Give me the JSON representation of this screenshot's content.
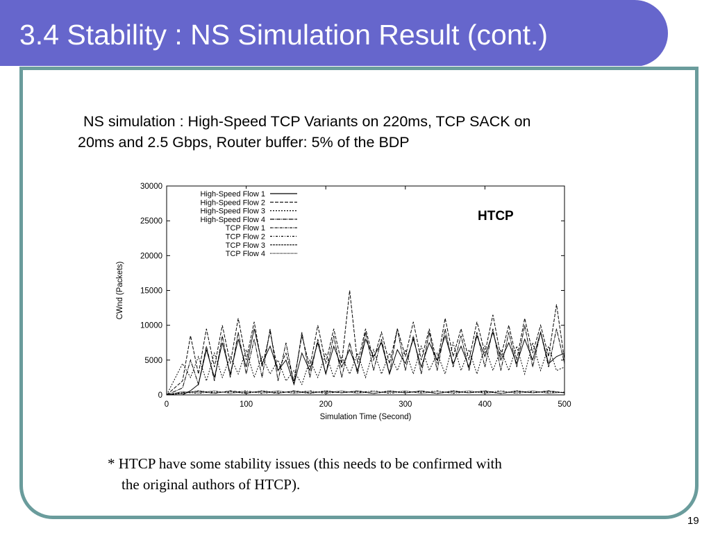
{
  "slide": {
    "title": "3.4 Stability : NS Simulation Result (cont.)",
    "subtitle_line1": "NS simulation : High-Speed TCP Variants on 220ms, TCP SACK on",
    "subtitle_line2": "20ms and 2.5 Gbps, Router buffer: 5% of the BDP",
    "footnote_line1": "* HTCP have some stability issues (this needs to be confirmed with",
    "footnote_line2": "the original authors of HTCP).",
    "page_number": "19",
    "colors": {
      "title_bar": "#6666cc",
      "frame_border": "#6a9c9c",
      "title_text": "#ffffff"
    }
  },
  "chart_data": {
    "type": "line",
    "annotation": "HTCP",
    "xlabel": "Simulation Time (Second)",
    "ylabel": "CWnd (Packets)",
    "xlim": [
      0,
      500
    ],
    "ylim": [
      0,
      30000
    ],
    "xticks": [
      0,
      100,
      200,
      300,
      400,
      500
    ],
    "yticks": [
      0,
      5000,
      10000,
      15000,
      20000,
      25000,
      30000
    ],
    "grid": false,
    "legend_position": "top-left",
    "series": [
      {
        "name": "High-Speed Flow 1",
        "dash": "solid",
        "x": [
          0,
          20,
          30,
          40,
          50,
          60,
          70,
          80,
          90,
          100,
          110,
          120,
          130,
          140,
          150,
          160,
          170,
          180,
          190,
          200,
          210,
          220,
          230,
          240,
          250,
          260,
          270,
          280,
          290,
          300,
          310,
          320,
          330,
          340,
          350,
          360,
          370,
          380,
          390,
          400,
          410,
          420,
          430,
          440,
          450,
          460,
          470,
          480,
          490,
          500
        ],
        "y": [
          0,
          0,
          600,
          1500,
          6500,
          2500,
          7500,
          3000,
          8000,
          4000,
          9500,
          4500,
          7000,
          3500,
          5000,
          1500,
          6000,
          3500,
          7500,
          3000,
          7000,
          4000,
          6500,
          3500,
          8000,
          5500,
          7500,
          3000,
          6500,
          4500,
          8000,
          4000,
          7500,
          5000,
          8500,
          4500,
          7000,
          4000,
          8500,
          5500,
          9000,
          5000,
          7500,
          4500,
          8000,
          5000,
          9000,
          4500,
          5500,
          6000
        ]
      },
      {
        "name": "High-Speed Flow 2",
        "dash": "5,2",
        "x": [
          0,
          20,
          30,
          40,
          50,
          60,
          70,
          80,
          90,
          100,
          110,
          120,
          130,
          140,
          150,
          160,
          170,
          180,
          190,
          200,
          210,
          220,
          230,
          240,
          250,
          260,
          270,
          280,
          290,
          300,
          310,
          320,
          330,
          340,
          350,
          360,
          370,
          380,
          390,
          400,
          410,
          420,
          430,
          440,
          450,
          460,
          470,
          480,
          490,
          500
        ],
        "y": [
          0,
          2000,
          8500,
          3000,
          9500,
          4000,
          10000,
          4500,
          11000,
          5000,
          10500,
          4000,
          9000,
          3500,
          6000,
          2000,
          8500,
          4000,
          10000,
          4500,
          9500,
          4500,
          15000,
          4500,
          9500,
          5000,
          9000,
          4500,
          9500,
          5500,
          10500,
          5000,
          9500,
          4500,
          11000,
          5500,
          9500,
          5000,
          10500,
          6000,
          11500,
          5500,
          10000,
          5000,
          11000,
          6000,
          10000,
          5500,
          13000,
          5000
        ]
      },
      {
        "name": "High-Speed Flow 3",
        "dash": "2,2",
        "x": [
          0,
          20,
          30,
          40,
          50,
          60,
          70,
          80,
          90,
          100,
          110,
          120,
          130,
          140,
          150,
          160,
          170,
          180,
          190,
          200,
          210,
          220,
          230,
          240,
          250,
          260,
          270,
          280,
          290,
          300,
          310,
          320,
          330,
          340,
          350,
          360,
          370,
          380,
          390,
          400,
          410,
          420,
          430,
          440,
          450,
          460,
          470,
          480,
          490,
          500
        ],
        "y": [
          0,
          4500,
          2500,
          5500,
          2000,
          6000,
          2500,
          5500,
          3000,
          6500,
          2500,
          5500,
          3000,
          5000,
          2000,
          3500,
          1500,
          5000,
          2500,
          6000,
          2500,
          5500,
          3000,
          6000,
          2500,
          6500,
          3000,
          6000,
          3500,
          6500,
          3000,
          7000,
          3500,
          6000,
          3000,
          7500,
          3500,
          6500,
          3000,
          7000,
          3500,
          6500,
          3500,
          7000,
          3000,
          7500,
          3500,
          7000,
          3500,
          4000
        ]
      },
      {
        "name": "High-Speed Flow 4",
        "dash": "6,1,1,1",
        "x": [
          0,
          20,
          30,
          40,
          50,
          60,
          70,
          80,
          90,
          100,
          110,
          120,
          130,
          140,
          150,
          160,
          170,
          180,
          190,
          200,
          210,
          220,
          230,
          240,
          250,
          260,
          270,
          280,
          290,
          300,
          310,
          320,
          330,
          340,
          350,
          360,
          370,
          380,
          390,
          400,
          410,
          420,
          430,
          440,
          450,
          460,
          470,
          480,
          490,
          500
        ],
        "y": [
          0,
          1000,
          5000,
          1500,
          7000,
          2000,
          8500,
          2500,
          9000,
          3000,
          8000,
          2500,
          9500,
          2000,
          7500,
          1500,
          9000,
          2500,
          8000,
          3000,
          8500,
          2500,
          7500,
          3000,
          9000,
          3500,
          8000,
          3000,
          9500,
          3500,
          8500,
          3000,
          9000,
          3500,
          9500,
          4000,
          8500,
          3500,
          9000,
          4000,
          9500,
          3500,
          9000,
          4000,
          10000,
          4000,
          9000,
          4000,
          9500,
          4500
        ]
      },
      {
        "name": "TCP Flow 1",
        "dash": "4,1,1,1",
        "x": [
          0,
          20,
          40,
          60,
          80,
          100,
          120,
          140,
          160,
          180,
          200,
          220,
          240,
          260,
          280,
          300,
          320,
          340,
          360,
          380,
          400,
          420,
          440,
          460,
          480,
          500
        ],
        "y": [
          0,
          300,
          500,
          200,
          600,
          300,
          500,
          200,
          600,
          300,
          500,
          300,
          600,
          200,
          500,
          300,
          600,
          200,
          500,
          300,
          600,
          200,
          500,
          300,
          600,
          300
        ]
      },
      {
        "name": "TCP Flow 2",
        "dash": "3,2,1,2",
        "x": [
          0,
          20,
          40,
          60,
          80,
          100,
          120,
          140,
          160,
          180,
          200,
          220,
          240,
          260,
          280,
          300,
          320,
          340,
          360,
          380,
          400,
          420,
          440,
          460,
          480,
          500
        ],
        "y": [
          0,
          400,
          200,
          500,
          300,
          600,
          200,
          500,
          300,
          600,
          200,
          500,
          300,
          600,
          200,
          500,
          300,
          600,
          200,
          500,
          300,
          600,
          200,
          500,
          300,
          400
        ]
      },
      {
        "name": "TCP Flow 3",
        "dash": "3,1",
        "x": [
          0,
          20,
          40,
          60,
          80,
          100,
          120,
          140,
          160,
          180,
          200,
          220,
          240,
          260,
          280,
          300,
          320,
          340,
          360,
          380,
          400,
          420,
          440,
          460,
          480,
          500
        ],
        "y": [
          0,
          200,
          600,
          300,
          500,
          200,
          600,
          300,
          500,
          200,
          600,
          300,
          500,
          200,
          600,
          300,
          500,
          200,
          600,
          300,
          500,
          200,
          600,
          300,
          500,
          300
        ]
      },
      {
        "name": "TCP Flow 4",
        "dash": "1,1",
        "x": [
          0,
          20,
          40,
          60,
          80,
          100,
          120,
          140,
          160,
          180,
          200,
          220,
          240,
          260,
          280,
          300,
          320,
          340,
          360,
          380,
          400,
          420,
          440,
          460,
          480,
          500
        ],
        "y": [
          0,
          500,
          300,
          600,
          200,
          500,
          300,
          600,
          200,
          500,
          300,
          600,
          200,
          500,
          300,
          600,
          200,
          500,
          300,
          600,
          200,
          500,
          300,
          600,
          200,
          400
        ]
      }
    ]
  }
}
